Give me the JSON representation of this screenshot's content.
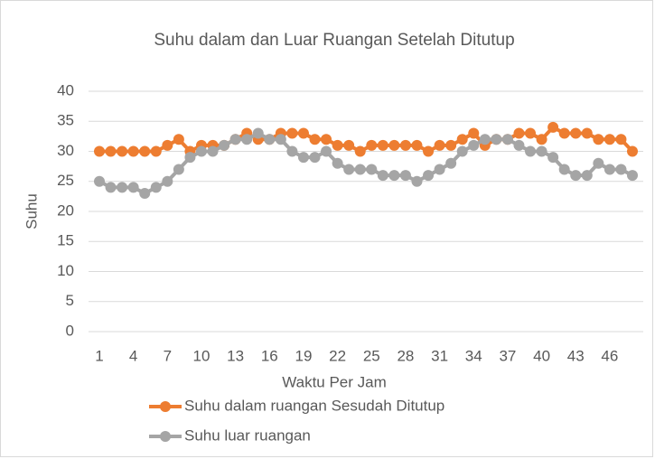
{
  "chart_data": {
    "type": "line",
    "title": "Suhu dalam dan Luar Ruangan  Setelah Ditutup",
    "x_label": "Waktu Per Jam",
    "y_label": "Suhu",
    "categories": [
      1,
      null,
      null,
      4,
      null,
      null,
      7,
      null,
      null,
      10,
      null,
      null,
      13,
      null,
      null,
      16,
      null,
      null,
      19,
      null,
      null,
      22,
      null,
      null,
      25,
      null,
      null,
      28,
      null,
      null,
      31,
      null,
      null,
      34,
      null,
      null,
      37,
      null,
      null,
      40,
      null,
      null,
      43,
      null,
      null,
      46,
      null,
      null
    ],
    "series": [
      {
        "name": "Suhu dalam ruangan Sesudah Ditutup",
        "color": "#ED7D31",
        "values": [
          30,
          30,
          30,
          30,
          30,
          30,
          31,
          32,
          30,
          31,
          31,
          31,
          32,
          33,
          32,
          32,
          33,
          33,
          33,
          32,
          32,
          31,
          31,
          30,
          31,
          31,
          31,
          31,
          31,
          30,
          31,
          31,
          32,
          33,
          31,
          32,
          32,
          33,
          33,
          32,
          34,
          33,
          33,
          33,
          32,
          32,
          32,
          30
        ]
      },
      {
        "name": "Suhu luar ruangan",
        "color": "#A5A5A5",
        "values": [
          25,
          24,
          24,
          24,
          23,
          24,
          25,
          27,
          29,
          30,
          30,
          31,
          32,
          32,
          33,
          32,
          32,
          30,
          29,
          29,
          30,
          28,
          27,
          27,
          27,
          26,
          26,
          26,
          25,
          26,
          27,
          28,
          30,
          31,
          32,
          32,
          32,
          31,
          30,
          30,
          29,
          27,
          26,
          26,
          28,
          27,
          27,
          26
        ]
      }
    ],
    "ylim": [
      0,
      40
    ],
    "yticks": [
      0,
      5,
      10,
      15,
      20,
      25,
      30,
      35,
      40
    ],
    "grid": true
  }
}
